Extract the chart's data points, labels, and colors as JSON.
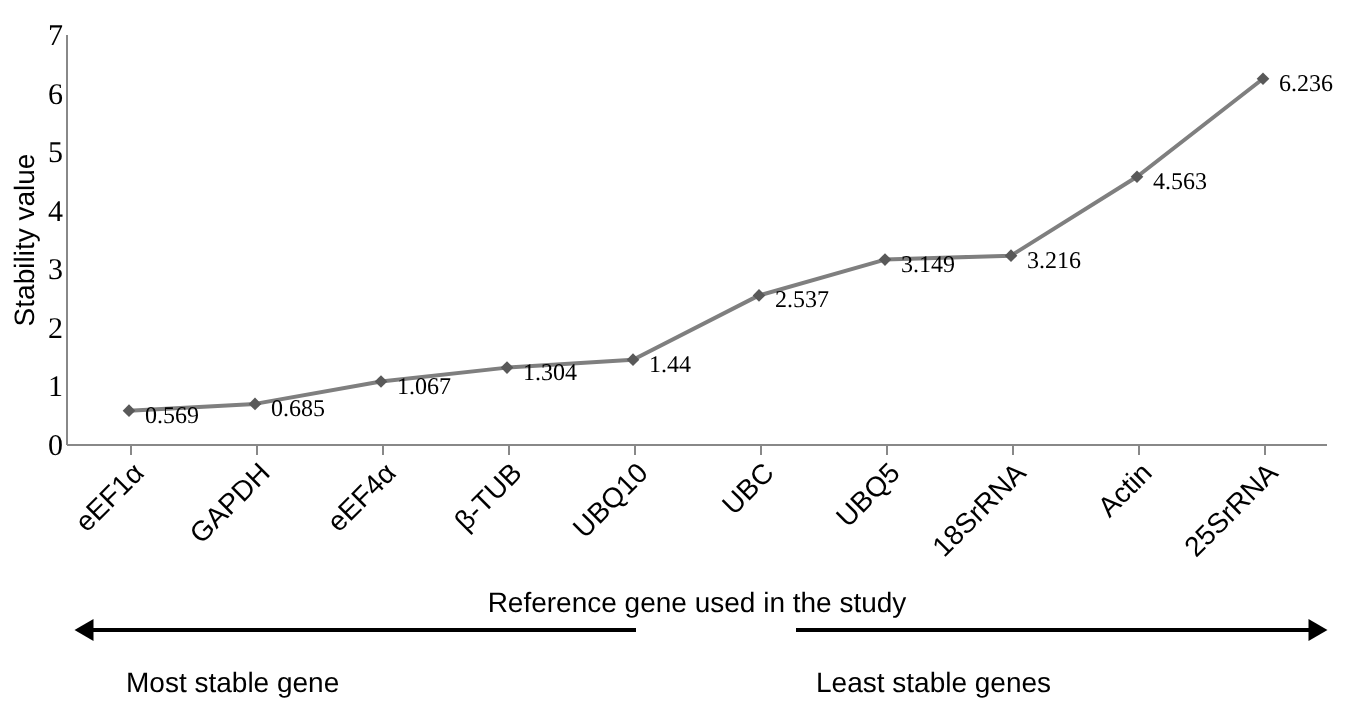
{
  "chart_data": {
    "type": "line",
    "xlabel": "Reference gene used in the study",
    "ylabel": "Stability value",
    "categories": [
      "eEF1α",
      "GAPDH",
      "eEF4α",
      "β-TUB",
      "UBQ10",
      "UBC",
      "UBQ5",
      "18SrRNA",
      "Actin",
      "25SrRNA"
    ],
    "series": [
      {
        "color": "#7f7f7f",
        "values": [
          0.569,
          0.685,
          1.067,
          1.304,
          1.44,
          2.537,
          3.149,
          3.216,
          4.563,
          6.236
        ]
      }
    ],
    "ylim": [
      0,
      7
    ],
    "yticks": [
      0,
      1,
      2,
      3,
      4,
      5,
      6,
      7
    ],
    "grid": false,
    "marker": "diamond",
    "line_style": "solid",
    "data_labels": true,
    "annotations": [
      "Most stable gene",
      "Least stable genes"
    ]
  }
}
